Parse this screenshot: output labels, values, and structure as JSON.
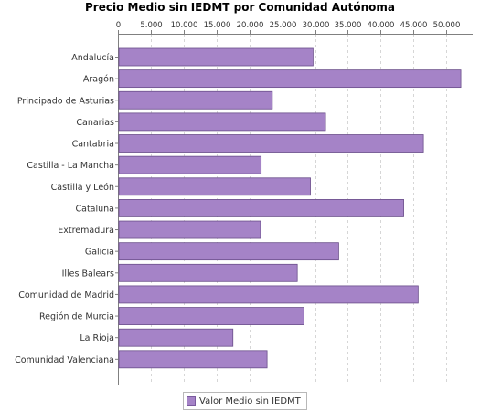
{
  "chart_data": {
    "type": "bar",
    "orientation": "horizontal",
    "title": "Precio Medio sin IEDMT por Comunidad Autónoma",
    "xlabel": "",
    "ylabel": "",
    "categories": [
      "Andalucía",
      "Aragón",
      "Principado de Asturias",
      "Canarias",
      "Cantabria",
      "Castilla - La Mancha",
      "Castilla y León",
      "Cataluña",
      "Extremadura",
      "Galicia",
      "Illes Balears",
      "Comunidad de Madrid",
      "Región de Murcia",
      "La Rioja",
      "Comunidad Valenciana"
    ],
    "series": [
      {
        "name": "Valor Medio sin IEDMT",
        "values": [
          29700,
          52200,
          23500,
          31600,
          46500,
          21800,
          29300,
          43500,
          21700,
          33600,
          27300,
          45700,
          28300,
          17500,
          22700
        ]
      }
    ],
    "xlim": [
      0,
      54000
    ],
    "ticks": [
      0,
      5000,
      10000,
      15000,
      20000,
      25000,
      30000,
      35000,
      40000,
      45000,
      50000
    ],
    "tick_labels": [
      "0",
      "5.000",
      "10.000",
      "15.000",
      "20.000",
      "25.000",
      "30.000",
      "35.000",
      "40.000",
      "45.000",
      "50.000"
    ],
    "axis_position": "top",
    "grid": true,
    "legend_position": "bottom",
    "colors": {
      "bar_fill": "#a583c7",
      "bar_stroke": "#6a4e8a",
      "grid": "#d6d6d6",
      "axis": "#808080"
    }
  }
}
